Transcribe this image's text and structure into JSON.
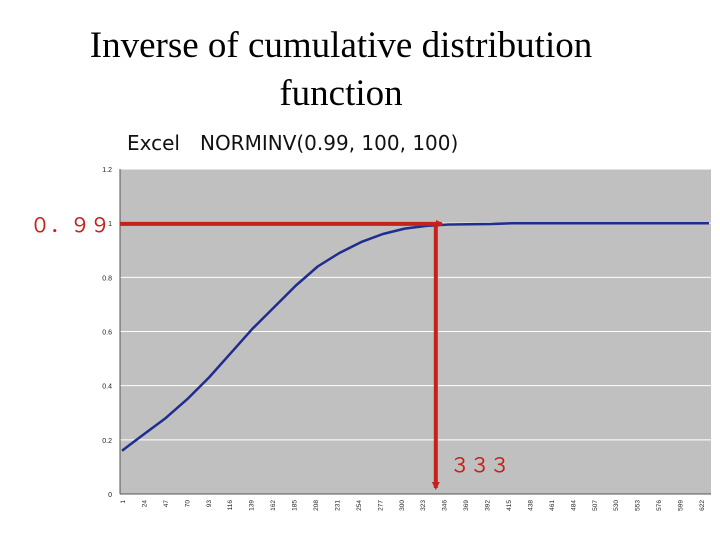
{
  "slide": {
    "title_line1": "Inverse of cumulative distribution",
    "title_line2": "function",
    "subtitle": "Excel　NORMINV(0.99, 100, 100)"
  },
  "colors": {
    "plot_background": "#c0c0c0",
    "series_line": "#1f2d8c",
    "annotation_arrow": "#c4221b",
    "annotation_text": "#c4221b",
    "grid": "#ffffff"
  },
  "chart_data": {
    "type": "line",
    "title": "",
    "xlabel": "",
    "ylabel": "",
    "ylim": [
      0,
      1.2
    ],
    "yticks": [
      "0",
      "0.2",
      "0.4",
      "0.6",
      "0.8",
      "1",
      "1.2"
    ],
    "grid": true,
    "legend": "none",
    "xticks": [
      "1",
      "24",
      "47",
      "70",
      "93",
      "116",
      "139",
      "162",
      "185",
      "208",
      "231",
      "254",
      "277",
      "300",
      "323",
      "346",
      "369",
      "392",
      "415",
      "438",
      "461",
      "484",
      "507",
      "530",
      "553",
      "576",
      "599",
      "622"
    ],
    "series": [
      {
        "values": [
          [
            1,
            0.16
          ],
          [
            24,
            0.22
          ],
          [
            47,
            0.28
          ],
          [
            70,
            0.35
          ],
          [
            93,
            0.43
          ],
          [
            116,
            0.52
          ],
          [
            139,
            0.61
          ],
          [
            162,
            0.69
          ],
          [
            185,
            0.77
          ],
          [
            208,
            0.84
          ],
          [
            231,
            0.89
          ],
          [
            254,
            0.93
          ],
          [
            277,
            0.96
          ],
          [
            300,
            0.98
          ],
          [
            323,
            0.99
          ],
          [
            346,
            0.995
          ],
          [
            392,
            0.997
          ],
          [
            415,
            1.0
          ],
          [
            622,
            1.0
          ]
        ]
      }
    ],
    "annotations": {
      "y_marker_label": "０．９９",
      "y_marker_value": 0.99,
      "x_marker_label": "３３３",
      "x_marker_value": 333
    }
  }
}
